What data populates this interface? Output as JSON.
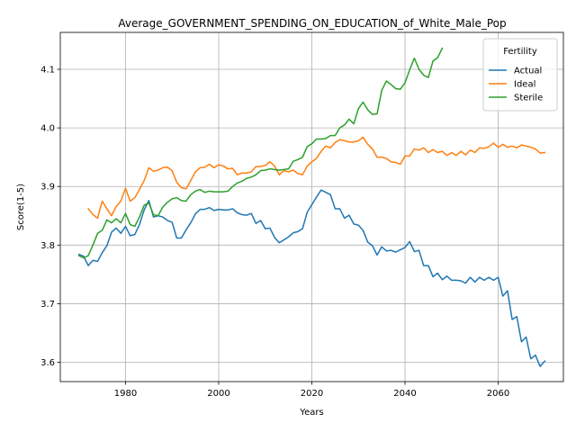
{
  "chart_data": {
    "type": "line",
    "title": "Average_GOVERNMENT_SPENDING_ON_EDUCATION_of_White_Male_Pop",
    "xlabel": "Years",
    "ylabel": "Score(1-5)",
    "xlim": [
      1966,
      2074
    ],
    "ylim": [
      3.567,
      4.163
    ],
    "xticks": [
      1980,
      2000,
      2020,
      2040,
      2060
    ],
    "yticks": [
      3.6,
      3.7,
      3.8,
      3.9,
      4.0,
      4.1
    ],
    "grid": true,
    "legend": {
      "title": "Fertility",
      "position": "top-right"
    },
    "series": [
      {
        "name": "Actual",
        "color": "#1f77b4",
        "x": [
          1970,
          1971,
          1972,
          1973,
          1974,
          1975,
          1976,
          1977,
          1978,
          1979,
          1980,
          1981,
          1982,
          1983,
          1984,
          1985,
          1986,
          1987,
          1988,
          1989,
          1990,
          1991,
          1992,
          1993,
          1994,
          1995,
          1996,
          1997,
          1998,
          1999,
          2000,
          2001,
          2002,
          2003,
          2004,
          2005,
          2006,
          2007,
          2008,
          2009,
          2010,
          2011,
          2012,
          2013,
          2014,
          2015,
          2016,
          2017,
          2018,
          2019,
          2020,
          2021,
          2022,
          2023,
          2024,
          2025,
          2026,
          2027,
          2028,
          2029,
          2030,
          2031,
          2032,
          2033,
          2034,
          2035,
          2036,
          2037,
          2038,
          2039,
          2040,
          2041,
          2042,
          2043,
          2044,
          2045,
          2046,
          2047,
          2048,
          2049,
          2050,
          2051,
          2052,
          2053,
          2054,
          2055,
          2056,
          2057,
          2058,
          2059,
          2060,
          2061,
          2062,
          2063,
          2064,
          2065,
          2066,
          2067,
          2068,
          2069,
          2070
        ],
        "y": [
          3.784,
          3.781,
          3.765,
          3.774,
          3.772,
          3.787,
          3.799,
          3.822,
          3.829,
          3.82,
          3.832,
          3.816,
          3.818,
          3.835,
          3.86,
          3.876,
          3.848,
          3.85,
          3.848,
          3.842,
          3.839,
          3.812,
          3.812,
          3.826,
          3.838,
          3.853,
          3.861,
          3.861,
          3.864,
          3.859,
          3.861,
          3.86,
          3.86,
          3.862,
          3.855,
          3.852,
          3.851,
          3.854,
          3.837,
          3.842,
          3.828,
          3.829,
          3.813,
          3.804,
          3.809,
          3.814,
          3.821,
          3.823,
          3.828,
          3.856,
          3.869,
          3.882,
          3.894,
          3.89,
          3.886,
          3.862,
          3.862,
          3.846,
          3.851,
          3.836,
          3.834,
          3.825,
          3.805,
          3.799,
          3.783,
          3.797,
          3.79,
          3.791,
          3.788,
          3.792,
          3.796,
          3.806,
          3.789,
          3.791,
          3.765,
          3.765,
          3.746,
          3.752,
          3.741,
          3.747,
          3.74,
          3.74,
          3.739,
          3.735,
          3.745,
          3.737,
          3.745,
          3.74,
          3.745,
          3.74,
          3.745,
          3.713,
          3.722,
          3.673,
          3.678,
          3.635,
          3.643,
          3.606,
          3.612,
          3.593,
          3.602
        ]
      },
      {
        "name": "Ideal",
        "color": "#ff7f0e",
        "x": [
          1972,
          1973,
          1974,
          1975,
          1976,
          1977,
          1978,
          1979,
          1980,
          1981,
          1982,
          1983,
          1984,
          1985,
          1986,
          1987,
          1988,
          1989,
          1990,
          1991,
          1992,
          1993,
          1994,
          1995,
          1996,
          1997,
          1998,
          1999,
          2000,
          2001,
          2002,
          2003,
          2004,
          2005,
          2006,
          2007,
          2008,
          2009,
          2010,
          2011,
          2012,
          2013,
          2014,
          2015,
          2016,
          2017,
          2018,
          2019,
          2020,
          2021,
          2022,
          2023,
          2024,
          2025,
          2026,
          2027,
          2028,
          2029,
          2030,
          2031,
          2032,
          2033,
          2034,
          2035,
          2036,
          2037,
          2038,
          2039,
          2040,
          2041,
          2042,
          2043,
          2044,
          2045,
          2046,
          2047,
          2048,
          2049,
          2050,
          2051,
          2052,
          2053,
          2054,
          2055,
          2056,
          2057,
          2058,
          2059,
          2060,
          2061,
          2062,
          2063,
          2064,
          2065,
          2066,
          2067,
          2068,
          2069,
          2070
        ],
        "y": [
          3.862,
          3.852,
          3.846,
          3.875,
          3.862,
          3.85,
          3.866,
          3.875,
          3.897,
          3.875,
          3.881,
          3.895,
          3.91,
          3.932,
          3.926,
          3.928,
          3.932,
          3.933,
          3.927,
          3.907,
          3.898,
          3.896,
          3.91,
          3.925,
          3.932,
          3.933,
          3.938,
          3.932,
          3.937,
          3.935,
          3.93,
          3.931,
          3.92,
          3.923,
          3.923,
          3.925,
          3.934,
          3.934,
          3.936,
          3.942,
          3.935,
          3.92,
          3.927,
          3.925,
          3.928,
          3.922,
          3.92,
          3.935,
          3.942,
          3.948,
          3.96,
          3.969,
          3.966,
          3.975,
          3.98,
          3.978,
          3.976,
          3.976,
          3.978,
          3.984,
          3.972,
          3.964,
          3.95,
          3.95,
          3.948,
          3.942,
          3.941,
          3.938,
          3.952,
          3.952,
          3.964,
          3.962,
          3.966,
          3.958,
          3.963,
          3.958,
          3.96,
          3.953,
          3.958,
          3.953,
          3.96,
          3.954,
          3.962,
          3.958,
          3.966,
          3.965,
          3.968,
          3.974,
          3.967,
          3.972,
          3.967,
          3.969,
          3.966,
          3.971,
          3.969,
          3.967,
          3.964,
          3.957,
          3.958
        ]
      },
      {
        "name": "Sterile",
        "color": "#2ca02c",
        "x": [
          1970,
          1971,
          1972,
          1973,
          1974,
          1975,
          1976,
          1977,
          1978,
          1979,
          1980,
          1981,
          1982,
          1983,
          1984,
          1985,
          1986,
          1987,
          1988,
          1989,
          1990,
          1991,
          1992,
          1993,
          1994,
          1995,
          1996,
          1997,
          1998,
          1999,
          2000,
          2001,
          2002,
          2003,
          2004,
          2005,
          2006,
          2007,
          2008,
          2009,
          2010,
          2011,
          2012,
          2013,
          2014,
          2015,
          2016,
          2017,
          2018,
          2019,
          2020,
          2021,
          2022,
          2023,
          2024,
          2025,
          2026,
          2027,
          2028,
          2029,
          2030,
          2031,
          2032,
          2033,
          2034,
          2035,
          2036,
          2037,
          2038,
          2039,
          2040,
          2041,
          2042,
          2043,
          2044,
          2045,
          2046,
          2047,
          2048
        ],
        "y": [
          3.782,
          3.778,
          3.782,
          3.8,
          3.82,
          3.825,
          3.843,
          3.838,
          3.845,
          3.838,
          3.854,
          3.835,
          3.832,
          3.848,
          3.868,
          3.872,
          3.852,
          3.85,
          3.865,
          3.873,
          3.879,
          3.881,
          3.876,
          3.875,
          3.886,
          3.892,
          3.895,
          3.89,
          3.892,
          3.891,
          3.891,
          3.891,
          3.892,
          3.9,
          3.906,
          3.909,
          3.914,
          3.916,
          3.92,
          3.927,
          3.928,
          3.93,
          3.929,
          3.928,
          3.929,
          3.93,
          3.943,
          3.946,
          3.95,
          3.968,
          3.973,
          3.981,
          3.981,
          3.982,
          3.987,
          3.987,
          4.0,
          4.005,
          4.015,
          4.007,
          4.033,
          4.044,
          4.031,
          4.023,
          4.024,
          4.064,
          4.08,
          4.074,
          4.067,
          4.066,
          4.077,
          4.099,
          4.119,
          4.1,
          4.09,
          4.086,
          4.114,
          4.12,
          4.136
        ]
      }
    ]
  }
}
